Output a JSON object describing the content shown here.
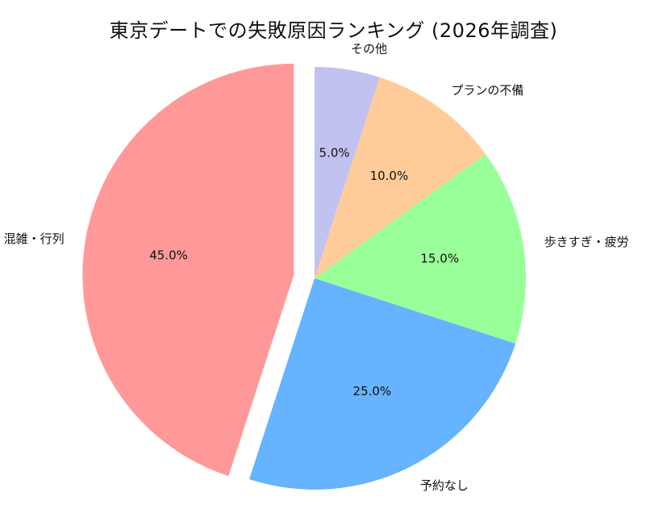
{
  "chart_data": {
    "type": "pie",
    "title": "東京デートでの失敗原因ランキング (2026年調査)",
    "start_angle_deg": 90,
    "direction": "counterclockwise",
    "slices": [
      {
        "label": "混雑・行列",
        "value": 45.0,
        "pct_text": "45.0%",
        "color": "#ff9999",
        "explode": true
      },
      {
        "label": "予約なし",
        "value": 25.0,
        "pct_text": "25.0%",
        "color": "#66b3ff",
        "explode": false
      },
      {
        "label": "歩きすぎ・疲労",
        "value": 15.0,
        "pct_text": "15.0%",
        "color": "#99ff99",
        "explode": false
      },
      {
        "label": "プランの不備",
        "value": 10.0,
        "pct_text": "10.0%",
        "color": "#ffcc99",
        "explode": false
      },
      {
        "label": "その他",
        "value": 5.0,
        "pct_text": "5.0%",
        "color": "#c2c2f0",
        "explode": false
      }
    ]
  }
}
